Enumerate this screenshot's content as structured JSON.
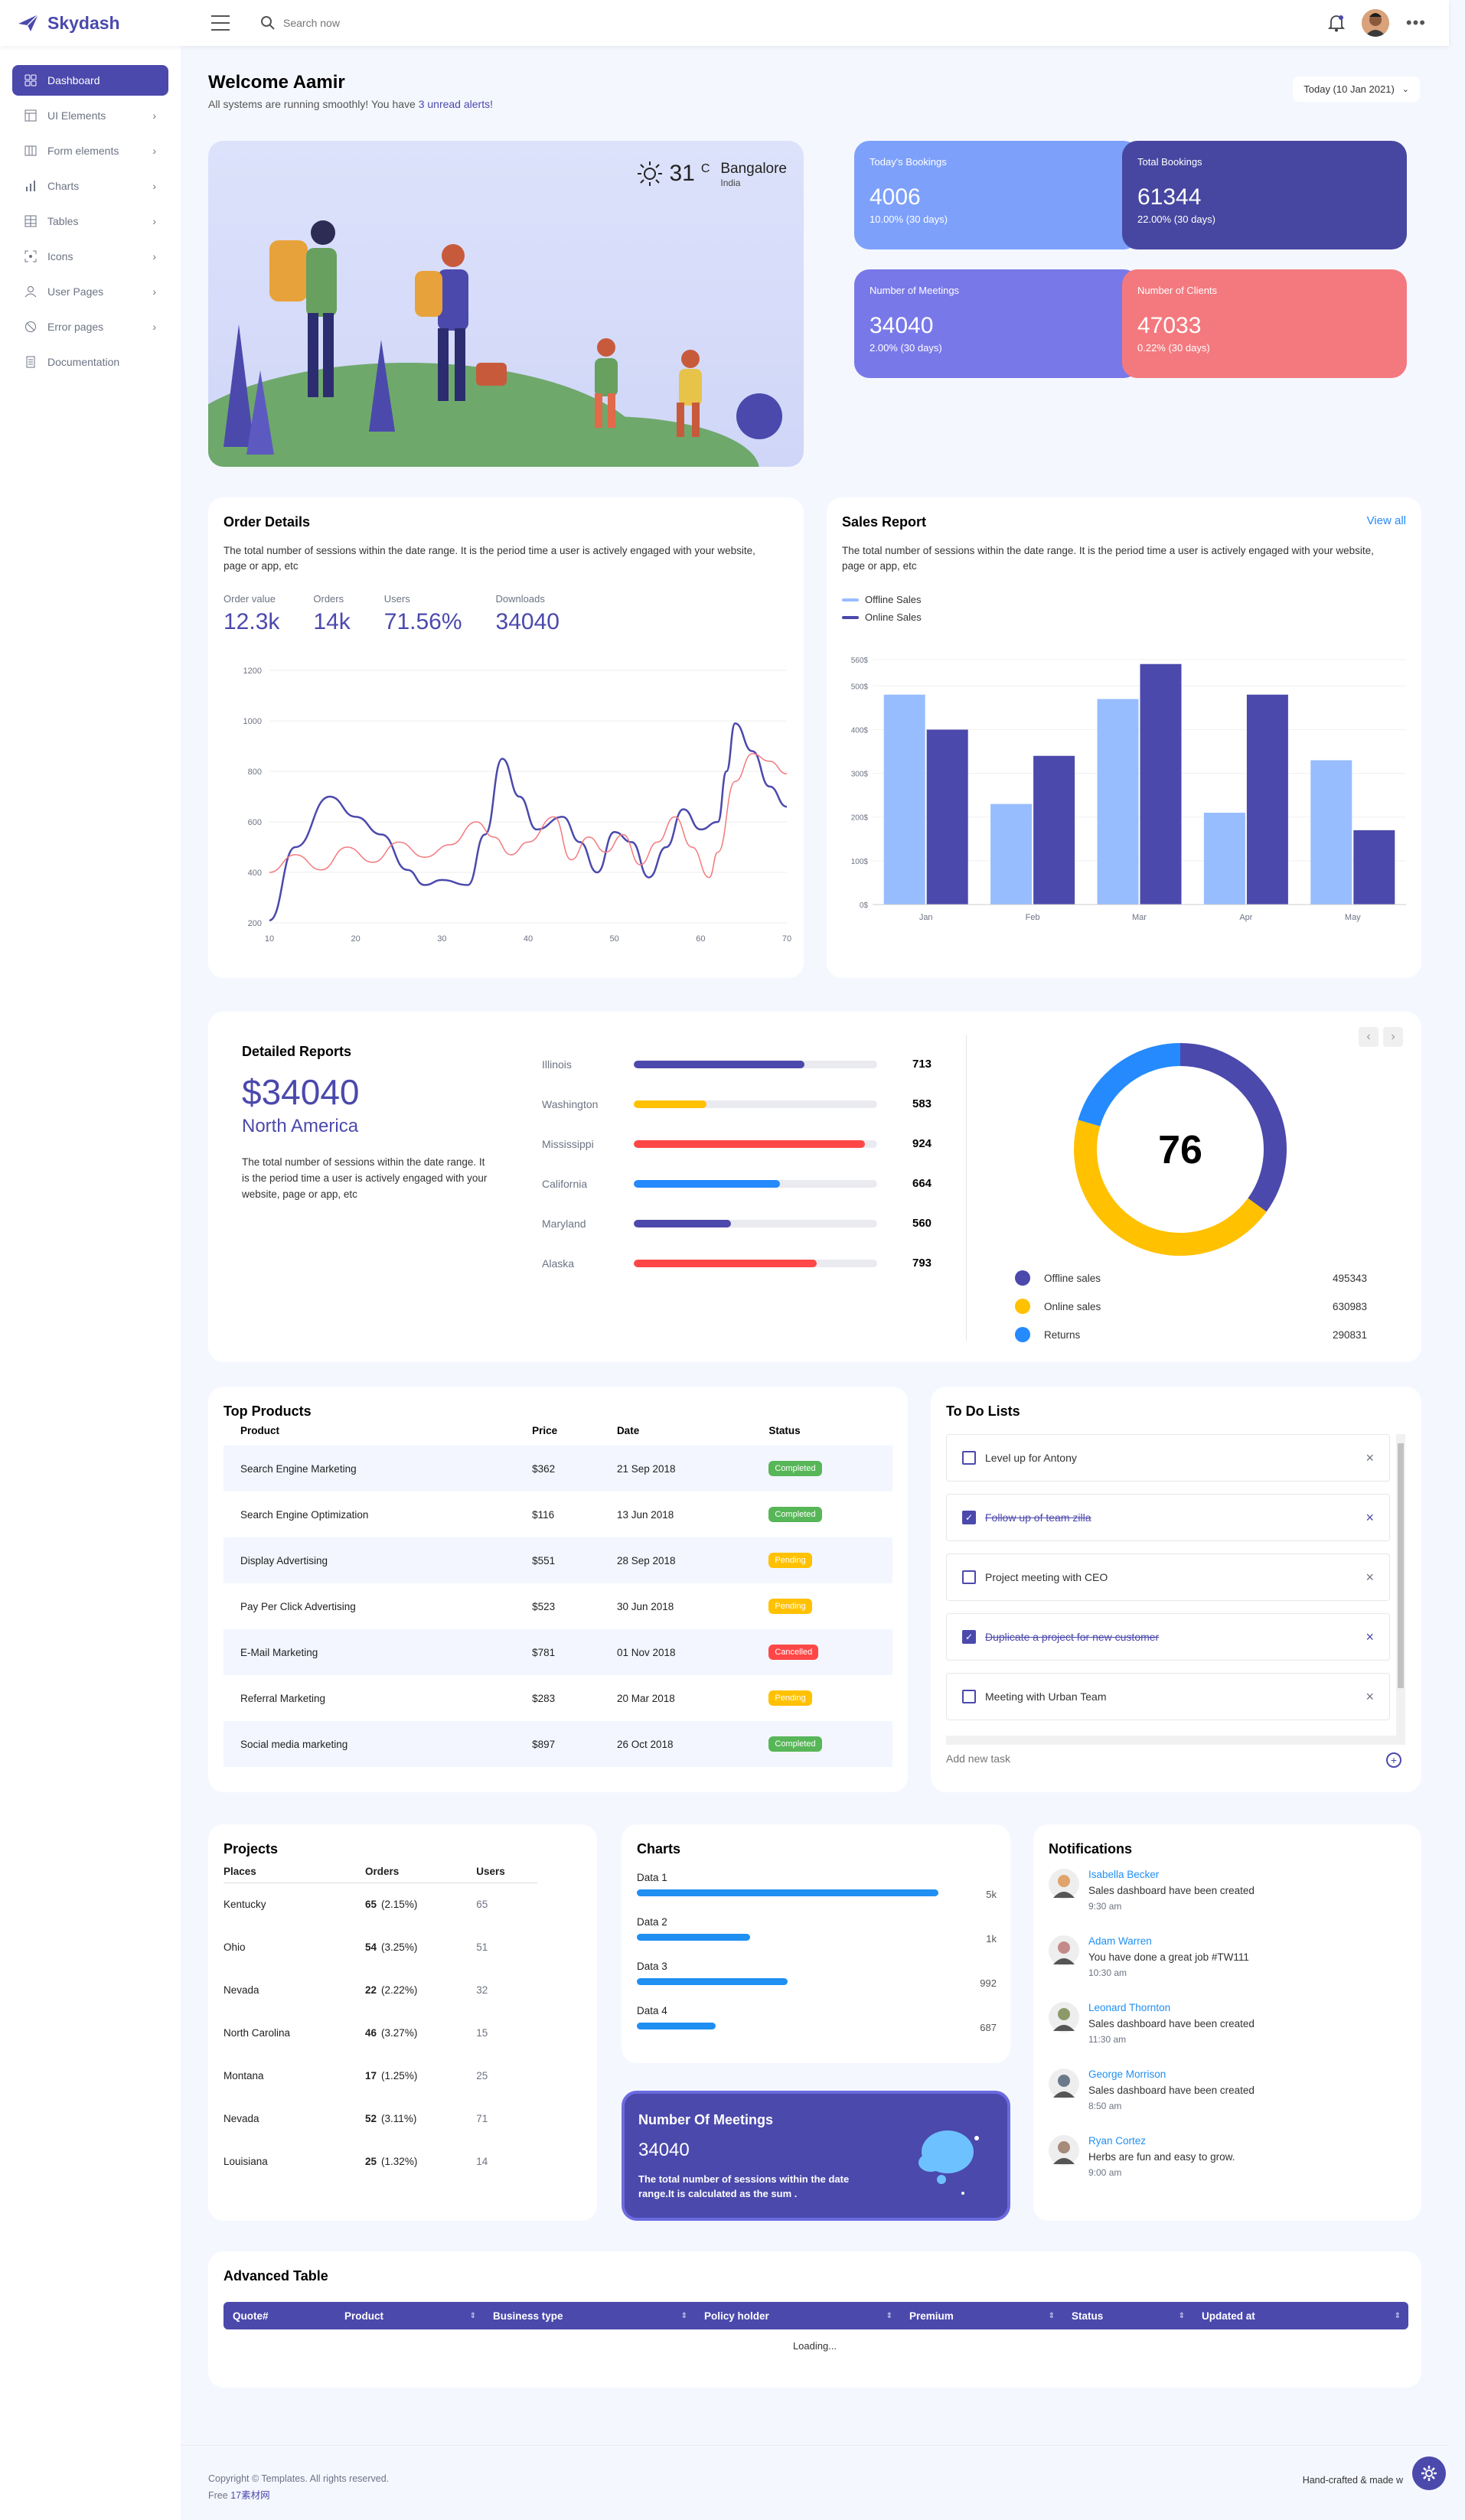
{
  "app": {
    "brand": "Skydash"
  },
  "navbar": {
    "search_placeholder": "Search now"
  },
  "sidebar": {
    "items": [
      {
        "label": "Dashboard",
        "icon": "grid-icon",
        "active": true,
        "chevron": false
      },
      {
        "label": "UI Elements",
        "icon": "layout-icon",
        "chevron": true
      },
      {
        "label": "Form elements",
        "icon": "columns-icon",
        "chevron": true
      },
      {
        "label": "Charts",
        "icon": "bar-chart-icon",
        "chevron": true
      },
      {
        "label": "Tables",
        "icon": "table-icon",
        "chevron": true
      },
      {
        "label": "Icons",
        "icon": "target-icon",
        "chevron": true
      },
      {
        "label": "User Pages",
        "icon": "user-icon",
        "chevron": true
      },
      {
        "label": "Error pages",
        "icon": "ban-icon",
        "chevron": true
      },
      {
        "label": "Documentation",
        "icon": "doc-icon",
        "chevron": false
      }
    ]
  },
  "welcome": {
    "title": "Welcome Aamir",
    "subtitle": "All systems are running smoothly! You have ",
    "alerts_link": "3 unread alerts!",
    "date_button": "Today (10 Jan 2021)"
  },
  "weather": {
    "temp": "31",
    "unit": "C",
    "city": "Bangalore",
    "country": "India"
  },
  "stats": [
    {
      "title": "Today's Bookings",
      "value": "4006",
      "sub": "10.00% (30 days)",
      "color": "#7da0fa"
    },
    {
      "title": "Total Bookings",
      "value": "61344",
      "sub": "22.00% (30 days)",
      "color": "#4747a1"
    },
    {
      "title": "Number of Meetings",
      "value": "34040",
      "sub": "2.00% (30 days)",
      "color": "#7978e9"
    },
    {
      "title": "Number of Clients",
      "value": "47033",
      "sub": "0.22% (30 days)",
      "color": "#f3797e"
    }
  ],
  "order_details": {
    "title": "Order Details",
    "desc": "The total number of sessions within the date range. It is the period time a user is actively engaged with your website, page or app, etc",
    "metrics": [
      {
        "label": "Order value",
        "value": "12.3k"
      },
      {
        "label": "Orders",
        "value": "14k"
      },
      {
        "label": "Users",
        "value": "71.56%"
      },
      {
        "label": "Downloads",
        "value": "34040"
      }
    ]
  },
  "sales_report": {
    "title": "Sales Report",
    "view_all": "View all",
    "desc": "The total number of sessions within the date range. It is the period time a user is actively engaged with your website, page or app, etc"
  },
  "detailed_reports": {
    "title": "Detailed Reports",
    "amount": "$34040",
    "region": "North America",
    "desc": "The total number of sessions within the date range. It is the period time a user is actively engaged with your website, page or app, etc",
    "states": [
      {
        "name": "Illinois",
        "value": "713",
        "fill": 0.7,
        "color": "#4b49ac"
      },
      {
        "name": "Washington",
        "value": "583",
        "fill": 0.3,
        "color": "#ffc100"
      },
      {
        "name": "Mississippi",
        "value": "924",
        "fill": 0.95,
        "color": "#ff4747"
      },
      {
        "name": "California",
        "value": "664",
        "fill": 0.6,
        "color": "#248afd"
      },
      {
        "name": "Maryland",
        "value": "560",
        "fill": 0.4,
        "color": "#4b49ac"
      },
      {
        "name": "Alaska",
        "value": "793",
        "fill": 0.75,
        "color": "#ff4747"
      }
    ],
    "donut_value": "76",
    "donut_legend": [
      {
        "name": "Offline sales",
        "value": "495343",
        "color": "#4b49ac"
      },
      {
        "name": "Online sales",
        "value": "630983",
        "color": "#ffc100"
      },
      {
        "name": "Returns",
        "value": "290831",
        "color": "#248afd"
      }
    ]
  },
  "top_products": {
    "title": "Top Products",
    "headers": [
      "Product",
      "Price",
      "Date",
      "Status"
    ],
    "rows": [
      {
        "product": "Search Engine Marketing",
        "price": "$362",
        "date": "21 Sep 2018",
        "status": "Completed",
        "color": "#57b657"
      },
      {
        "product": "Search Engine Optimization",
        "price": "$116",
        "date": "13 Jun 2018",
        "status": "Completed",
        "color": "#57b657"
      },
      {
        "product": "Display Advertising",
        "price": "$551",
        "date": "28 Sep 2018",
        "status": "Pending",
        "color": "#ffc100"
      },
      {
        "product": "Pay Per Click Advertising",
        "price": "$523",
        "date": "30 Jun 2018",
        "status": "Pending",
        "color": "#ffc100"
      },
      {
        "product": "E-Mail Marketing",
        "price": "$781",
        "date": "01 Nov 2018",
        "status": "Cancelled",
        "color": "#ff4747"
      },
      {
        "product": "Referral Marketing",
        "price": "$283",
        "date": "20 Mar 2018",
        "status": "Pending",
        "color": "#ffc100"
      },
      {
        "product": "Social media marketing",
        "price": "$897",
        "date": "26 Oct 2018",
        "status": "Completed",
        "color": "#57b657"
      }
    ]
  },
  "todo": {
    "title": "To Do Lists",
    "items": [
      {
        "text": "Level up for Antony",
        "done": false
      },
      {
        "text": "Follow up of team zilla",
        "done": true
      },
      {
        "text": "Project meeting with CEO",
        "done": false
      },
      {
        "text": "Duplicate a project for new customer",
        "done": true
      },
      {
        "text": "Meeting with Urban Team",
        "done": false
      }
    ],
    "add_placeholder": "Add new task"
  },
  "projects": {
    "title": "Projects",
    "headers": [
      "Places",
      "Orders",
      "Users"
    ],
    "rows": [
      {
        "place": "Kentucky",
        "orders": "65",
        "pct": "(2.15%)",
        "users": "65"
      },
      {
        "place": "Ohio",
        "orders": "54",
        "pct": "(3.25%)",
        "users": "51"
      },
      {
        "place": "Nevada",
        "orders": "22",
        "pct": "(2.22%)",
        "users": "32"
      },
      {
        "place": "North Carolina",
        "orders": "46",
        "pct": "(3.27%)",
        "users": "15"
      },
      {
        "place": "Montana",
        "orders": "17",
        "pct": "(1.25%)",
        "users": "25"
      },
      {
        "place": "Nevada",
        "orders": "52",
        "pct": "(3.11%)",
        "users": "71"
      },
      {
        "place": "Louisiana",
        "orders": "25",
        "pct": "(1.32%)",
        "users": "14"
      }
    ]
  },
  "charts_card": {
    "title": "Charts",
    "rows": [
      {
        "label": "Data 1",
        "value": "5k",
        "fill": 0.96
      },
      {
        "label": "Data 2",
        "value": "1k",
        "fill": 0.36
      },
      {
        "label": "Data 3",
        "value": "992",
        "fill": 0.48
      },
      {
        "label": "Data 4",
        "value": "687",
        "fill": 0.25
      }
    ]
  },
  "meetings_card": {
    "title": "Number Of Meetings",
    "value": "34040",
    "desc": "The total number of sessions within the date range.It is calculated as the sum ."
  },
  "notifications": {
    "title": "Notifications",
    "items": [
      {
        "name": "Isabella Becker",
        "msg": "Sales dashboard have been created",
        "time": "9:30 am"
      },
      {
        "name": "Adam Warren",
        "msg": "You have done a great job #TW111",
        "time": "10:30 am"
      },
      {
        "name": "Leonard Thornton",
        "msg": "Sales dashboard have been created",
        "time": "11:30 am"
      },
      {
        "name": "George Morrison",
        "msg": "Sales dashboard have been created",
        "time": "8:50 am"
      },
      {
        "name": "Ryan Cortez",
        "msg": "Herbs are fun and easy to grow.",
        "time": "9:00 am"
      }
    ]
  },
  "advanced_table": {
    "title": "Advanced Table",
    "headers": [
      "Quote#",
      "Product",
      "Business type",
      "Policy holder",
      "Premium",
      "Status",
      "Updated at"
    ],
    "loading": "Loading..."
  },
  "footer": {
    "copyright": "Copyright © Templates. All rights reserved.",
    "free": "Free ",
    "free_link": "17素材网",
    "right": "Hand-crafted & made w"
  },
  "colors": {
    "primary": "#4b49ac",
    "light_blue": "#98bdff",
    "dark_blue": "#4b49ac"
  },
  "chart_data": [
    {
      "type": "line",
      "x": [
        10,
        20,
        30,
        40,
        50,
        60,
        70
      ],
      "xlim": [
        10,
        70
      ],
      "ylim": [
        200,
        1200
      ],
      "yticks": [
        200,
        400,
        600,
        800,
        1000,
        1200
      ],
      "xticks": [
        10,
        20,
        30,
        40,
        50,
        60,
        70
      ],
      "series": [
        {
          "color": "#4b49ac",
          "points": [
            [
              10,
              210
            ],
            [
              13,
              500
            ],
            [
              17,
              700
            ],
            [
              20,
              620
            ],
            [
              23,
              550
            ],
            [
              26,
              410
            ],
            [
              28,
              350
            ],
            [
              30,
              370
            ],
            [
              33,
              350
            ],
            [
              35,
              550
            ],
            [
              37,
              850
            ],
            [
              39,
              700
            ],
            [
              41,
              570
            ],
            [
              44,
              620
            ],
            [
              46,
              520
            ],
            [
              48,
              400
            ],
            [
              50,
              560
            ],
            [
              52,
              520
            ],
            [
              54,
              380
            ],
            [
              56,
              500
            ],
            [
              58,
              650
            ],
            [
              60,
              570
            ],
            [
              62,
              600
            ],
            [
              63,
              800
            ],
            [
              64,
              990
            ],
            [
              66,
              880
            ],
            [
              68,
              740
            ],
            [
              70,
              660
            ]
          ]
        },
        {
          "color": "#f3797e",
          "points": [
            [
              10,
              400
            ],
            [
              13,
              470
            ],
            [
              16,
              410
            ],
            [
              19,
              500
            ],
            [
              22,
              440
            ],
            [
              25,
              520
            ],
            [
              28,
              460
            ],
            [
              31,
              510
            ],
            [
              34,
              600
            ],
            [
              36,
              540
            ],
            [
              38,
              470
            ],
            [
              40,
              520
            ],
            [
              43,
              620
            ],
            [
              45,
              450
            ],
            [
              47,
              540
            ],
            [
              49,
              480
            ],
            [
              51,
              550
            ],
            [
              53,
              430
            ],
            [
              55,
              520
            ],
            [
              57,
              620
            ],
            [
              59,
              500
            ],
            [
              61,
              380
            ],
            [
              62,
              480
            ],
            [
              64,
              760
            ],
            [
              66,
              870
            ],
            [
              68,
              840
            ],
            [
              70,
              790
            ]
          ]
        }
      ]
    },
    {
      "type": "bar",
      "categories": [
        "Jan",
        "Feb",
        "Mar",
        "Apr",
        "May"
      ],
      "ylim": [
        0,
        560
      ],
      "yticks": [
        "0$",
        "100$",
        "200$",
        "300$",
        "400$",
        "500$",
        "560$"
      ],
      "ytick_values": [
        0,
        100,
        200,
        300,
        400,
        500,
        560
      ],
      "series": [
        {
          "name": "Offline Sales",
          "color": "#98bdff",
          "values": [
            480,
            230,
            470,
            210,
            330
          ]
        },
        {
          "name": "Online Sales",
          "color": "#4b49ac",
          "values": [
            400,
            340,
            550,
            480,
            170
          ]
        }
      ]
    },
    {
      "type": "pie",
      "center_label": "76",
      "slices": [
        {
          "name": "Offline sales",
          "value": 495343,
          "color": "#4b49ac"
        },
        {
          "name": "Online sales",
          "value": 630983,
          "color": "#ffc100"
        },
        {
          "name": "Returns",
          "value": 290831,
          "color": "#248afd"
        }
      ]
    }
  ]
}
